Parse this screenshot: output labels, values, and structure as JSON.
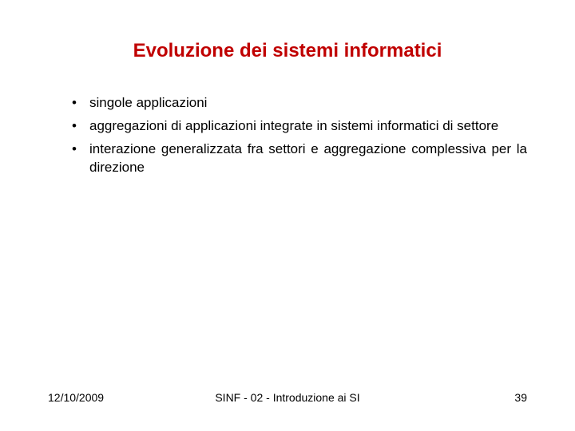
{
  "title": {
    "text": "Evoluzione dei sistemi informatici",
    "color": "#c00000",
    "fontsize": 24
  },
  "bullets": {
    "items": [
      "singole applicazioni",
      "aggregazioni di applicazioni integrate in sistemi informatici di settore",
      "interazione generalizzata fra settori e aggregazione complessiva per la direzione"
    ],
    "fontsize": 17,
    "color": "#000000",
    "line_height": 1.35
  },
  "footer": {
    "date": "12/10/2009",
    "center": "SINF - 02 - Introduzione ai SI",
    "page": "39",
    "fontsize": 14,
    "color": "#000000"
  },
  "background_color": "#ffffff"
}
